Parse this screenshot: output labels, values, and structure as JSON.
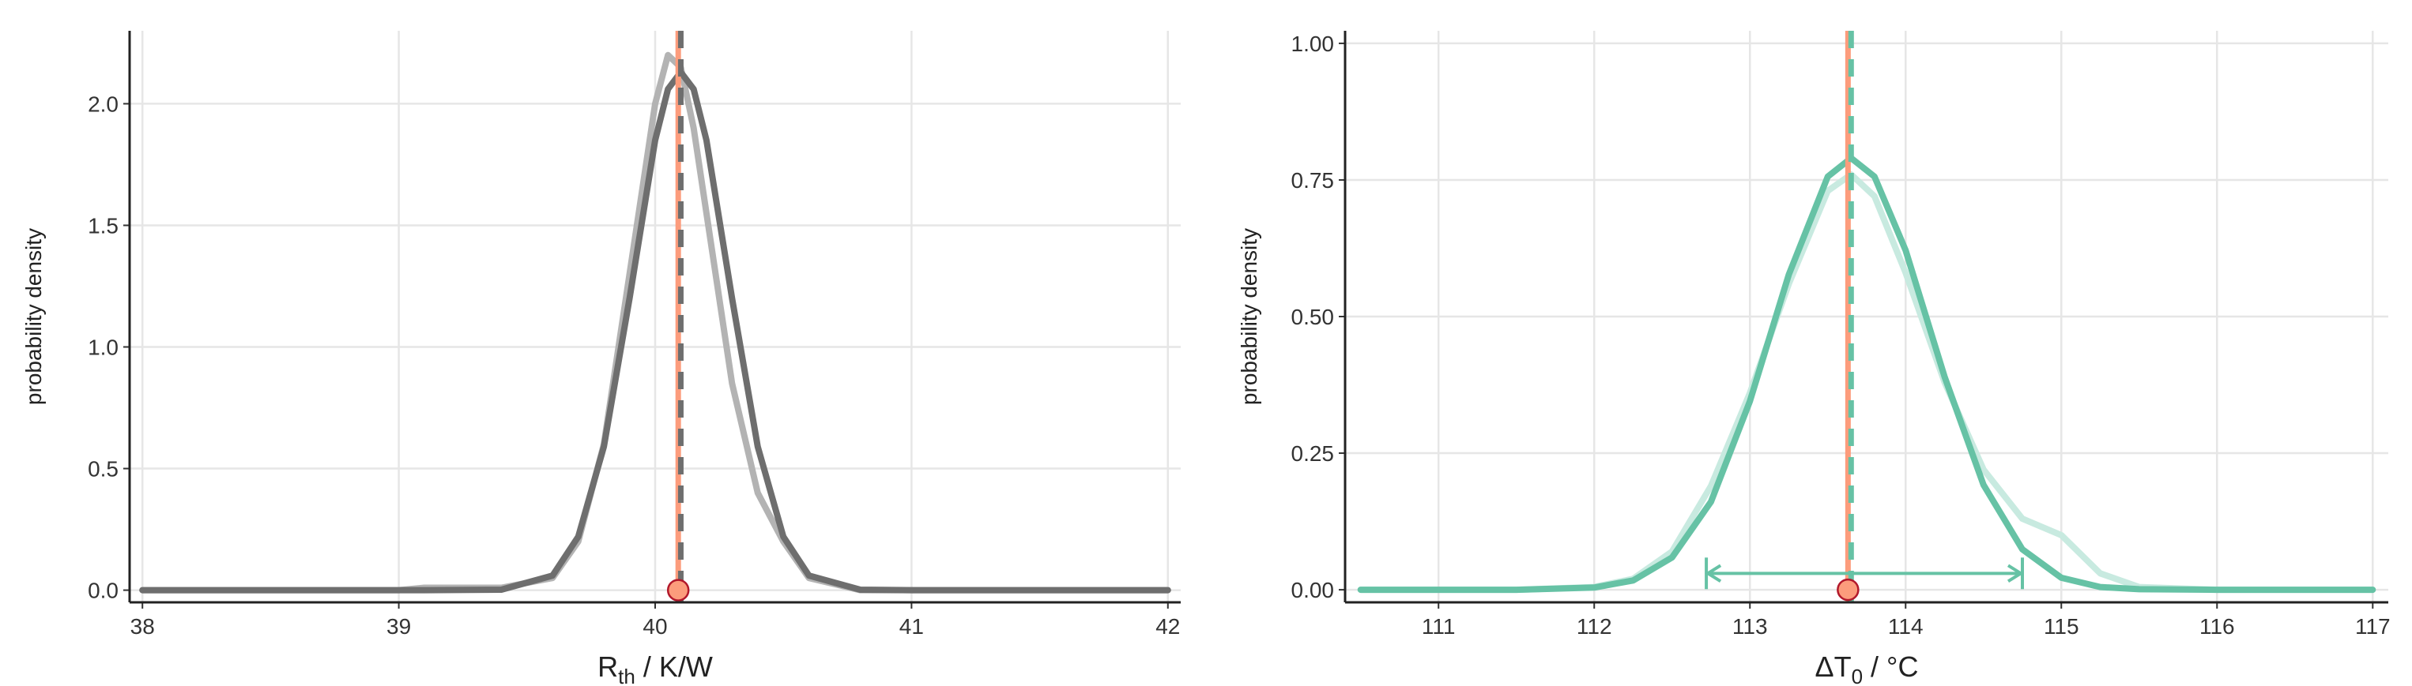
{
  "chart_data": [
    {
      "type": "line",
      "xlabel": "R",
      "xlabel_sub": "th",
      "xlabel_rest": " / K/W",
      "ylabel": "probability density",
      "xlim": [
        37.95,
        42.05
      ],
      "ylim": [
        -0.05,
        2.3
      ],
      "xticks": [
        38,
        39,
        40,
        41,
        42
      ],
      "yticks": [
        {
          "value": 0,
          "label": "0.0"
        },
        {
          "value": 0.5,
          "label": "0.5"
        },
        {
          "value": 1,
          "label": "1.0"
        },
        {
          "value": 1.5,
          "label": "1.5"
        },
        {
          "value": 2,
          "label": "2.0"
        }
      ],
      "grid": true,
      "x": [
        38,
        39,
        39.1,
        39.4,
        39.6,
        39.7,
        39.8,
        39.9,
        40,
        40.05,
        40.1,
        40.15,
        40.2,
        40.3,
        40.4,
        40.5,
        40.6,
        40.8,
        41,
        42
      ],
      "series": [
        {
          "color": "#b3b3b3",
          "values": [
            0,
            0,
            0.01,
            0.01,
            0.05,
            0.2,
            0.6,
            1.3,
            2.0,
            2.2,
            2.15,
            1.9,
            1.55,
            0.85,
            0.4,
            0.2,
            0.05,
            0,
            0,
            0
          ]
        },
        {
          "color": "#6e6e6e",
          "values": [
            0,
            0,
            0,
            0.002,
            0.06,
            0.22,
            0.59,
            1.2,
            1.85,
            2.06,
            2.13,
            2.06,
            1.85,
            1.2,
            0.59,
            0.22,
            0.06,
            0.002,
            0,
            0
          ]
        }
      ],
      "vlines": [
        {
          "value": 40.09,
          "color": "#fc9c7c",
          "dashed": false
        },
        {
          "value": 40.1,
          "color": "#6e6e6e",
          "dashed": true
        }
      ],
      "point": {
        "x": 40.09,
        "y": 0,
        "color": "#fc9c7c"
      }
    },
    {
      "type": "line",
      "xlabel": "ΔT",
      "xlabel_sub": "0",
      "xlabel_rest": " / °C",
      "ylabel": "probability density",
      "xlim": [
        110.4,
        117.1
      ],
      "ylim": [
        -0.023,
        1.023
      ],
      "xticks": [
        111,
        112,
        113,
        114,
        115,
        116,
        117
      ],
      "yticks": [
        {
          "value": 0,
          "label": "0.00"
        },
        {
          "value": 0.25,
          "label": "0.25"
        },
        {
          "value": 0.5,
          "label": "0.50"
        },
        {
          "value": 0.75,
          "label": "0.75"
        },
        {
          "value": 1,
          "label": "1.00"
        }
      ],
      "grid": true,
      "x": [
        110.5,
        111,
        111.5,
        112,
        112.25,
        112.5,
        112.75,
        113,
        113.25,
        113.5,
        113.65,
        113.8,
        114,
        114.25,
        114.5,
        114.75,
        115,
        115.25,
        115.5,
        116,
        117
      ],
      "series": [
        {
          "color": "#c8eae0",
          "values": [
            0,
            0,
            0,
            0.005,
            0.02,
            0.07,
            0.19,
            0.36,
            0.56,
            0.73,
            0.76,
            0.72,
            0.58,
            0.38,
            0.22,
            0.13,
            0.1,
            0.03,
            0.005,
            0,
            0
          ]
        },
        {
          "color": "#66c2a5",
          "values": [
            0,
            0,
            0,
            0.004,
            0.017,
            0.059,
            0.161,
            0.345,
            0.577,
            0.756,
            0.79,
            0.756,
            0.621,
            0.39,
            0.192,
            0.074,
            0.022,
            0.005,
            0.001,
            0,
            0
          ]
        }
      ],
      "vlines": [
        {
          "value": 113.63,
          "color": "#fc9c7c",
          "dashed": false
        },
        {
          "value": 113.65,
          "color": "#66c2a5",
          "dashed": true
        }
      ],
      "point": {
        "x": 113.63,
        "y": 0,
        "color": "#fc9c7c"
      },
      "interval": [
        112.72,
        114.75
      ],
      "interval_y": 0.03,
      "interval_color": "#66c2a5"
    }
  ]
}
